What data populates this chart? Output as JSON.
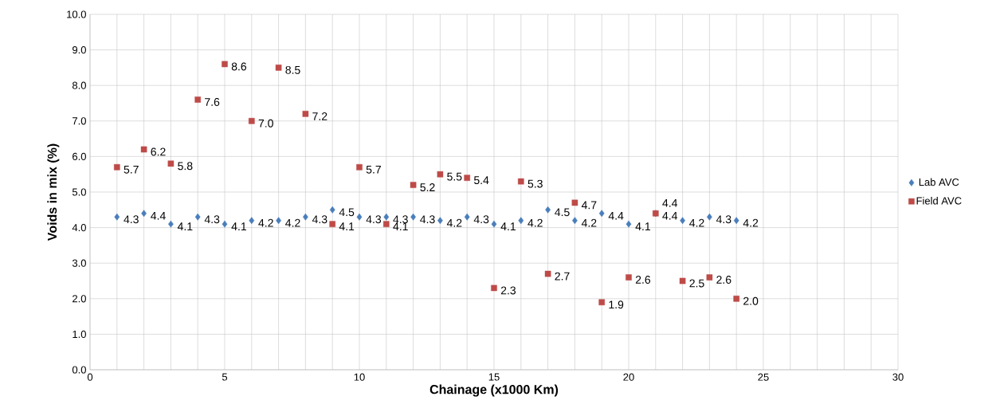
{
  "chart_data": {
    "type": "scatter",
    "xlabel": "Chainage (x1000 Km)",
    "ylabel": "Voids in mix (%)",
    "x": [
      1,
      2,
      3,
      4,
      5,
      6,
      7,
      8,
      9,
      10,
      11,
      12,
      13,
      14,
      15,
      16,
      17,
      18,
      19,
      20,
      21,
      22,
      23,
      24
    ],
    "series": [
      {
        "name": "Lab AVC",
        "color": "#4a7ebb",
        "marker": "diamond",
        "values": [
          4.3,
          4.4,
          4.1,
          4.3,
          4.1,
          4.2,
          4.2,
          4.3,
          4.5,
          4.3,
          4.3,
          4.3,
          4.2,
          4.3,
          4.1,
          4.2,
          4.5,
          4.2,
          4.4,
          4.1,
          4.4,
          4.2,
          4.3,
          4.2
        ],
        "value_labels": [
          "4.3",
          "4.4",
          "4.1",
          "4.3",
          "4.1",
          "4.2",
          "4.2",
          "4.3",
          "4.5",
          "4.3",
          "4.3",
          "4.3",
          "4.2",
          "4.3",
          "4.1",
          "4.2",
          "4.5",
          "4.2",
          "4.4",
          "4.1",
          "4.4",
          "4.2",
          "4.3",
          "4.2"
        ]
      },
      {
        "name": "Field AVC",
        "color": "#be4b48",
        "marker": "square",
        "values": [
          5.7,
          6.2,
          5.8,
          7.6,
          8.6,
          7.0,
          8.5,
          7.2,
          4.1,
          5.7,
          4.1,
          5.2,
          5.5,
          5.4,
          2.3,
          5.3,
          2.7,
          4.7,
          1.9,
          2.6,
          4.4,
          2.5,
          2.6,
          2.0
        ],
        "value_labels": [
          "5.7",
          "6.2",
          "5.8",
          "7.6",
          "8.6",
          "7.0",
          "8.5",
          "7.2",
          "4.1",
          "5.7",
          "4.1",
          "5.2",
          "5.5",
          "5.4",
          "2.3",
          "5.3",
          "2.7",
          "4.7",
          "1.9",
          "2.6",
          "4.4",
          "2.5",
          "2.6",
          "2.0"
        ]
      }
    ],
    "xlim": [
      0,
      30
    ],
    "xticks": [
      0,
      {
        "value": 1,
        "label": null
      },
      {
        "value": 2,
        "label": null
      },
      {
        "value": 3,
        "label": null
      },
      {
        "value": 4,
        "label": null
      },
      5,
      {
        "value": 6,
        "label": null
      },
      {
        "value": 7,
        "label": null
      },
      {
        "value": 8,
        "label": null
      },
      {
        "value": 9,
        "label": null
      },
      10,
      {
        "value": 11,
        "label": null
      },
      {
        "value": 12,
        "label": null
      },
      {
        "value": 13,
        "label": null
      },
      {
        "value": 14,
        "label": null
      },
      15,
      {
        "value": 16,
        "label": null
      },
      {
        "value": 17,
        "label": null
      },
      {
        "value": 18,
        "label": null
      },
      {
        "value": 19,
        "label": null
      },
      20,
      {
        "value": 21,
        "label": null
      },
      {
        "value": 22,
        "label": null
      },
      {
        "value": 23,
        "label": null
      },
      {
        "value": 24,
        "label": null
      },
      25,
      {
        "value": 26,
        "label": null
      },
      {
        "value": 27,
        "label": null
      },
      {
        "value": 28,
        "label": null
      },
      {
        "value": 29,
        "label": null
      },
      30
    ],
    "ylim": [
      0,
      10
    ],
    "yticks": [
      {
        "value": 0,
        "label": "0.0"
      },
      {
        "value": 1,
        "label": "1.0"
      },
      {
        "value": 2,
        "label": "2.0"
      },
      {
        "value": 3,
        "label": "3.0"
      },
      {
        "value": 4,
        "label": "4.0"
      },
      {
        "value": 5,
        "label": "5.0"
      },
      {
        "value": 6,
        "label": "6.0"
      },
      {
        "value": 7,
        "label": "7.0"
      },
      {
        "value": 8,
        "label": "8.0"
      },
      {
        "value": 9,
        "label": "9.0"
      },
      {
        "value": 10,
        "label": "10.0"
      }
    ],
    "grid": true,
    "legend": "right"
  }
}
